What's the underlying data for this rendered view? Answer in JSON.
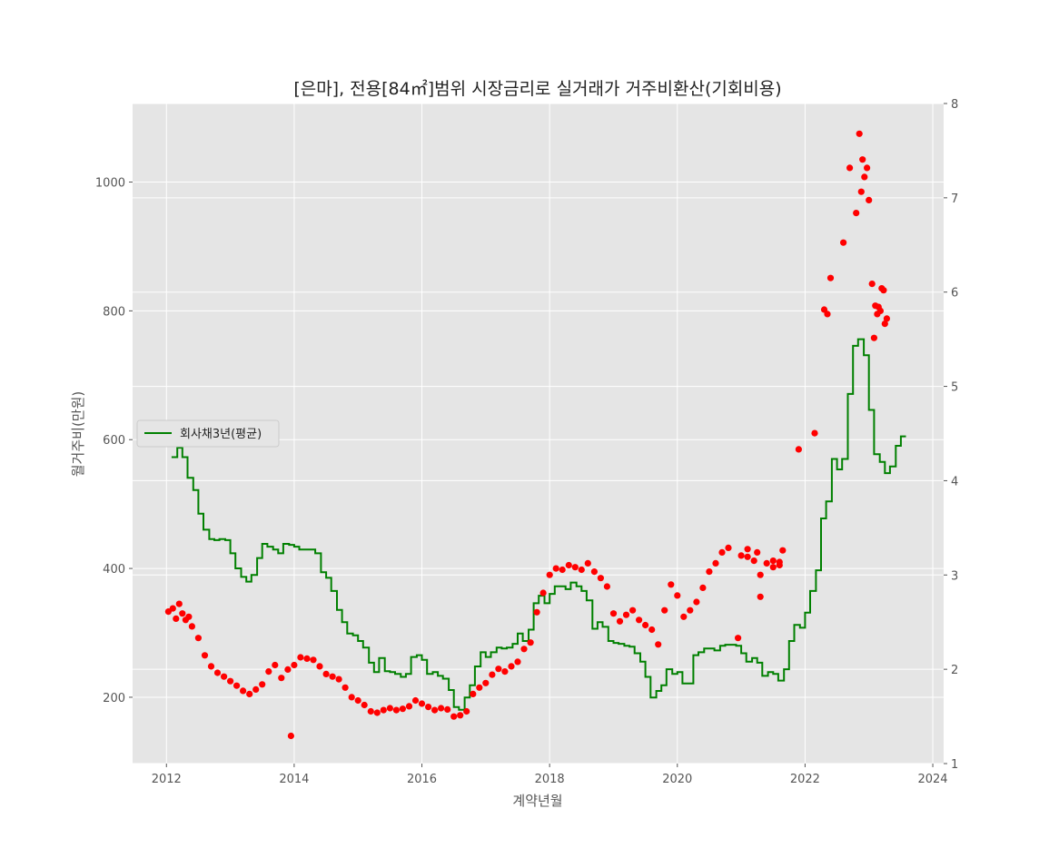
{
  "chart_data": {
    "type": "scatter",
    "title": "[은마], 전용[84㎡]범위 시장금리로 실거래가 거주비환산(기회비용)",
    "xlabel": "계약년월",
    "ylabel": "월거주비(만원)",
    "xlim": [
      2011.47,
      2024.17
    ],
    "ylim": [
      97,
      1122
    ],
    "y2lim": [
      1,
      8
    ],
    "xticks": [
      "2012",
      "2014",
      "2016",
      "2018",
      "2020",
      "2022",
      "2024"
    ],
    "yticks": [
      "200",
      "400",
      "600",
      "800",
      "1000"
    ],
    "y2ticks": [
      "1",
      "2",
      "3",
      "4",
      "5",
      "6",
      "7",
      "8"
    ],
    "grid": true,
    "legend": {
      "position": "center-left",
      "entries": [
        "회사채3년(평균)"
      ]
    },
    "colors": {
      "points": "#ff0000",
      "rate_line": "#008000",
      "plot_bg": "#e5e5e5",
      "grid": "#ffffff"
    },
    "series": [
      {
        "kind": "scatter",
        "axis": "left",
        "points": [
          [
            2012.03,
            333
          ],
          [
            2012.1,
            338
          ],
          [
            2012.15,
            322
          ],
          [
            2012.2,
            345
          ],
          [
            2012.25,
            330
          ],
          [
            2012.3,
            320
          ],
          [
            2012.35,
            325
          ],
          [
            2012.4,
            310
          ],
          [
            2012.5,
            292
          ],
          [
            2012.6,
            265
          ],
          [
            2012.7,
            248
          ],
          [
            2012.8,
            238
          ],
          [
            2012.9,
            232
          ],
          [
            2013.0,
            225
          ],
          [
            2013.1,
            218
          ],
          [
            2013.2,
            210
          ],
          [
            2013.3,
            205
          ],
          [
            2013.4,
            212
          ],
          [
            2013.5,
            220
          ],
          [
            2013.6,
            240
          ],
          [
            2013.7,
            250
          ],
          [
            2013.8,
            230
          ],
          [
            2013.9,
            243
          ],
          [
            2014.0,
            250
          ],
          [
            2014.1,
            262
          ],
          [
            2014.2,
            260
          ],
          [
            2014.3,
            258
          ],
          [
            2014.4,
            248
          ],
          [
            2014.5,
            236
          ],
          [
            2014.6,
            232
          ],
          [
            2014.7,
            228
          ],
          [
            2014.8,
            215
          ],
          [
            2014.9,
            200
          ],
          [
            2015.0,
            195
          ],
          [
            2015.1,
            188
          ],
          [
            2015.2,
            178
          ],
          [
            2015.3,
            176
          ],
          [
            2015.4,
            180
          ],
          [
            2015.5,
            183
          ],
          [
            2015.6,
            180
          ],
          [
            2015.7,
            182
          ],
          [
            2015.8,
            186
          ],
          [
            2015.9,
            195
          ],
          [
            2016.0,
            190
          ],
          [
            2016.1,
            185
          ],
          [
            2016.2,
            180
          ],
          [
            2016.3,
            183
          ],
          [
            2016.4,
            181
          ],
          [
            2016.5,
            170
          ],
          [
            2016.6,
            172
          ],
          [
            2016.7,
            178
          ],
          [
            2016.8,
            205
          ],
          [
            2016.9,
            215
          ],
          [
            2017.0,
            222
          ],
          [
            2017.1,
            235
          ],
          [
            2017.2,
            244
          ],
          [
            2017.3,
            240
          ],
          [
            2017.4,
            248
          ],
          [
            2017.5,
            255
          ],
          [
            2017.6,
            275
          ],
          [
            2017.7,
            285
          ],
          [
            2017.8,
            332
          ],
          [
            2017.9,
            362
          ],
          [
            2018.0,
            390
          ],
          [
            2018.1,
            400
          ],
          [
            2018.2,
            398
          ],
          [
            2018.3,
            405
          ],
          [
            2018.4,
            402
          ],
          [
            2018.5,
            398
          ],
          [
            2018.6,
            408
          ],
          [
            2018.7,
            395
          ],
          [
            2018.8,
            385
          ],
          [
            2018.9,
            372
          ],
          [
            2019.0,
            330
          ],
          [
            2019.1,
            318
          ],
          [
            2019.2,
            328
          ],
          [
            2019.3,
            335
          ],
          [
            2019.4,
            320
          ],
          [
            2019.5,
            312
          ],
          [
            2019.6,
            305
          ],
          [
            2019.7,
            282
          ],
          [
            2019.8,
            335
          ],
          [
            2019.9,
            375
          ],
          [
            2020.0,
            358
          ],
          [
            2020.1,
            325
          ],
          [
            2020.2,
            335
          ],
          [
            2020.3,
            348
          ],
          [
            2020.4,
            370
          ],
          [
            2020.5,
            395
          ],
          [
            2020.6,
            408
          ],
          [
            2020.7,
            425
          ],
          [
            2020.8,
            432
          ],
          [
            2021.0,
            420
          ],
          [
            2021.1,
            418
          ],
          [
            2021.2,
            412
          ],
          [
            2021.3,
            390
          ],
          [
            2021.4,
            408
          ],
          [
            2021.5,
            402
          ],
          [
            2021.6,
            410
          ],
          [
            2021.1,
            430
          ],
          [
            2021.25,
            425
          ],
          [
            2021.5,
            412
          ],
          [
            2021.6,
            405
          ],
          [
            2021.65,
            428
          ],
          [
            2013.95,
            140
          ],
          [
            2020.95,
            292
          ],
          [
            2021.3,
            356
          ],
          [
            2021.9,
            585
          ],
          [
            2022.15,
            610
          ],
          [
            2022.3,
            802
          ],
          [
            2022.35,
            795
          ],
          [
            2022.4,
            851
          ],
          [
            2022.6,
            906
          ],
          [
            2022.7,
            1022
          ],
          [
            2022.8,
            952
          ],
          [
            2022.85,
            1075
          ],
          [
            2022.88,
            985
          ],
          [
            2022.9,
            1035
          ],
          [
            2022.93,
            1008
          ],
          [
            2022.97,
            1022
          ],
          [
            2023.0,
            972
          ],
          [
            2023.05,
            842
          ],
          [
            2023.08,
            758
          ],
          [
            2023.1,
            808
          ],
          [
            2023.13,
            795
          ],
          [
            2023.15,
            806
          ],
          [
            2023.18,
            800
          ],
          [
            2023.2,
            835
          ],
          [
            2023.23,
            832
          ],
          [
            2023.25,
            780
          ],
          [
            2023.28,
            788
          ]
        ]
      },
      {
        "name": "회사채3년(평균)",
        "kind": "step",
        "axis": "right",
        "points": [
          [
            2012.08,
            4.25
          ],
          [
            2012.17,
            4.35
          ],
          [
            2012.25,
            4.25
          ],
          [
            2012.33,
            4.03
          ],
          [
            2012.42,
            3.9
          ],
          [
            2012.5,
            3.65
          ],
          [
            2012.58,
            3.48
          ],
          [
            2012.67,
            3.38
          ],
          [
            2012.75,
            3.37
          ],
          [
            2012.83,
            3.38
          ],
          [
            2012.92,
            3.37
          ],
          [
            2013.0,
            3.23
          ],
          [
            2013.08,
            3.07
          ],
          [
            2013.17,
            2.98
          ],
          [
            2013.25,
            2.93
          ],
          [
            2013.33,
            3.0
          ],
          [
            2013.42,
            3.18
          ],
          [
            2013.5,
            3.33
          ],
          [
            2013.58,
            3.3
          ],
          [
            2013.67,
            3.27
          ],
          [
            2013.75,
            3.23
          ],
          [
            2013.83,
            3.33
          ],
          [
            2013.92,
            3.32
          ],
          [
            2014.0,
            3.3
          ],
          [
            2014.08,
            3.27
          ],
          [
            2014.17,
            3.27
          ],
          [
            2014.25,
            3.27
          ],
          [
            2014.33,
            3.23
          ],
          [
            2014.42,
            3.03
          ],
          [
            2014.5,
            2.97
          ],
          [
            2014.58,
            2.83
          ],
          [
            2014.67,
            2.63
          ],
          [
            2014.75,
            2.5
          ],
          [
            2014.83,
            2.38
          ],
          [
            2014.92,
            2.36
          ],
          [
            2015.0,
            2.3
          ],
          [
            2015.08,
            2.23
          ],
          [
            2015.17,
            2.07
          ],
          [
            2015.25,
            1.97
          ],
          [
            2015.33,
            2.12
          ],
          [
            2015.42,
            1.98
          ],
          [
            2015.5,
            1.97
          ],
          [
            2015.58,
            1.95
          ],
          [
            2015.67,
            1.92
          ],
          [
            2015.75,
            1.95
          ],
          [
            2015.83,
            2.13
          ],
          [
            2015.92,
            2.15
          ],
          [
            2016.0,
            2.1
          ],
          [
            2016.08,
            1.95
          ],
          [
            2016.17,
            1.97
          ],
          [
            2016.25,
            1.93
          ],
          [
            2016.33,
            1.9
          ],
          [
            2016.42,
            1.78
          ],
          [
            2016.5,
            1.6
          ],
          [
            2016.58,
            1.57
          ],
          [
            2016.67,
            1.7
          ],
          [
            2016.75,
            1.83
          ],
          [
            2016.83,
            2.03
          ],
          [
            2016.92,
            2.18
          ],
          [
            2017.0,
            2.13
          ],
          [
            2017.08,
            2.18
          ],
          [
            2017.17,
            2.23
          ],
          [
            2017.25,
            2.22
          ],
          [
            2017.33,
            2.23
          ],
          [
            2017.42,
            2.27
          ],
          [
            2017.5,
            2.38
          ],
          [
            2017.58,
            2.3
          ],
          [
            2017.67,
            2.42
          ],
          [
            2017.75,
            2.7
          ],
          [
            2017.83,
            2.78
          ],
          [
            2017.92,
            2.7
          ],
          [
            2018.0,
            2.8
          ],
          [
            2018.08,
            2.88
          ],
          [
            2018.17,
            2.88
          ],
          [
            2018.25,
            2.85
          ],
          [
            2018.33,
            2.92
          ],
          [
            2018.42,
            2.88
          ],
          [
            2018.5,
            2.83
          ],
          [
            2018.58,
            2.73
          ],
          [
            2018.67,
            2.43
          ],
          [
            2018.75,
            2.5
          ],
          [
            2018.83,
            2.45
          ],
          [
            2018.92,
            2.3
          ],
          [
            2019.0,
            2.28
          ],
          [
            2019.08,
            2.27
          ],
          [
            2019.17,
            2.25
          ],
          [
            2019.25,
            2.24
          ],
          [
            2019.33,
            2.17
          ],
          [
            2019.42,
            2.08
          ],
          [
            2019.5,
            1.92
          ],
          [
            2019.58,
            1.7
          ],
          [
            2019.67,
            1.77
          ],
          [
            2019.75,
            1.83
          ],
          [
            2019.83,
            2.0
          ],
          [
            2019.92,
            1.95
          ],
          [
            2020.0,
            1.97
          ],
          [
            2020.08,
            1.85
          ],
          [
            2020.17,
            1.85
          ],
          [
            2020.25,
            2.15
          ],
          [
            2020.33,
            2.18
          ],
          [
            2020.42,
            2.22
          ],
          [
            2020.5,
            2.22
          ],
          [
            2020.58,
            2.2
          ],
          [
            2020.67,
            2.25
          ],
          [
            2020.75,
            2.26
          ],
          [
            2020.83,
            2.26
          ],
          [
            2020.92,
            2.25
          ],
          [
            2021.0,
            2.17
          ],
          [
            2021.08,
            2.08
          ],
          [
            2021.17,
            2.12
          ],
          [
            2021.25,
            2.07
          ],
          [
            2021.33,
            1.93
          ],
          [
            2021.42,
            1.97
          ],
          [
            2021.5,
            1.95
          ],
          [
            2021.58,
            1.88
          ],
          [
            2021.67,
            2.0
          ],
          [
            2021.75,
            2.3
          ],
          [
            2021.83,
            2.47
          ],
          [
            2021.92,
            2.44
          ],
          [
            2022.0,
            2.6
          ],
          [
            2022.08,
            2.83
          ],
          [
            2022.17,
            3.05
          ],
          [
            2022.25,
            3.6
          ],
          [
            2022.33,
            3.78
          ],
          [
            2022.42,
            4.23
          ],
          [
            2022.5,
            4.12
          ],
          [
            2022.58,
            4.23
          ],
          [
            2022.67,
            4.92
          ],
          [
            2022.75,
            5.43
          ],
          [
            2022.83,
            5.5
          ],
          [
            2022.92,
            5.33
          ],
          [
            2023.0,
            4.75
          ],
          [
            2023.08,
            4.28
          ],
          [
            2023.17,
            4.2
          ],
          [
            2023.25,
            4.08
          ],
          [
            2023.33,
            4.15
          ],
          [
            2023.42,
            4.37
          ],
          [
            2023.5,
            4.47
          ],
          [
            2023.58,
            4.47
          ]
        ]
      }
    ]
  }
}
